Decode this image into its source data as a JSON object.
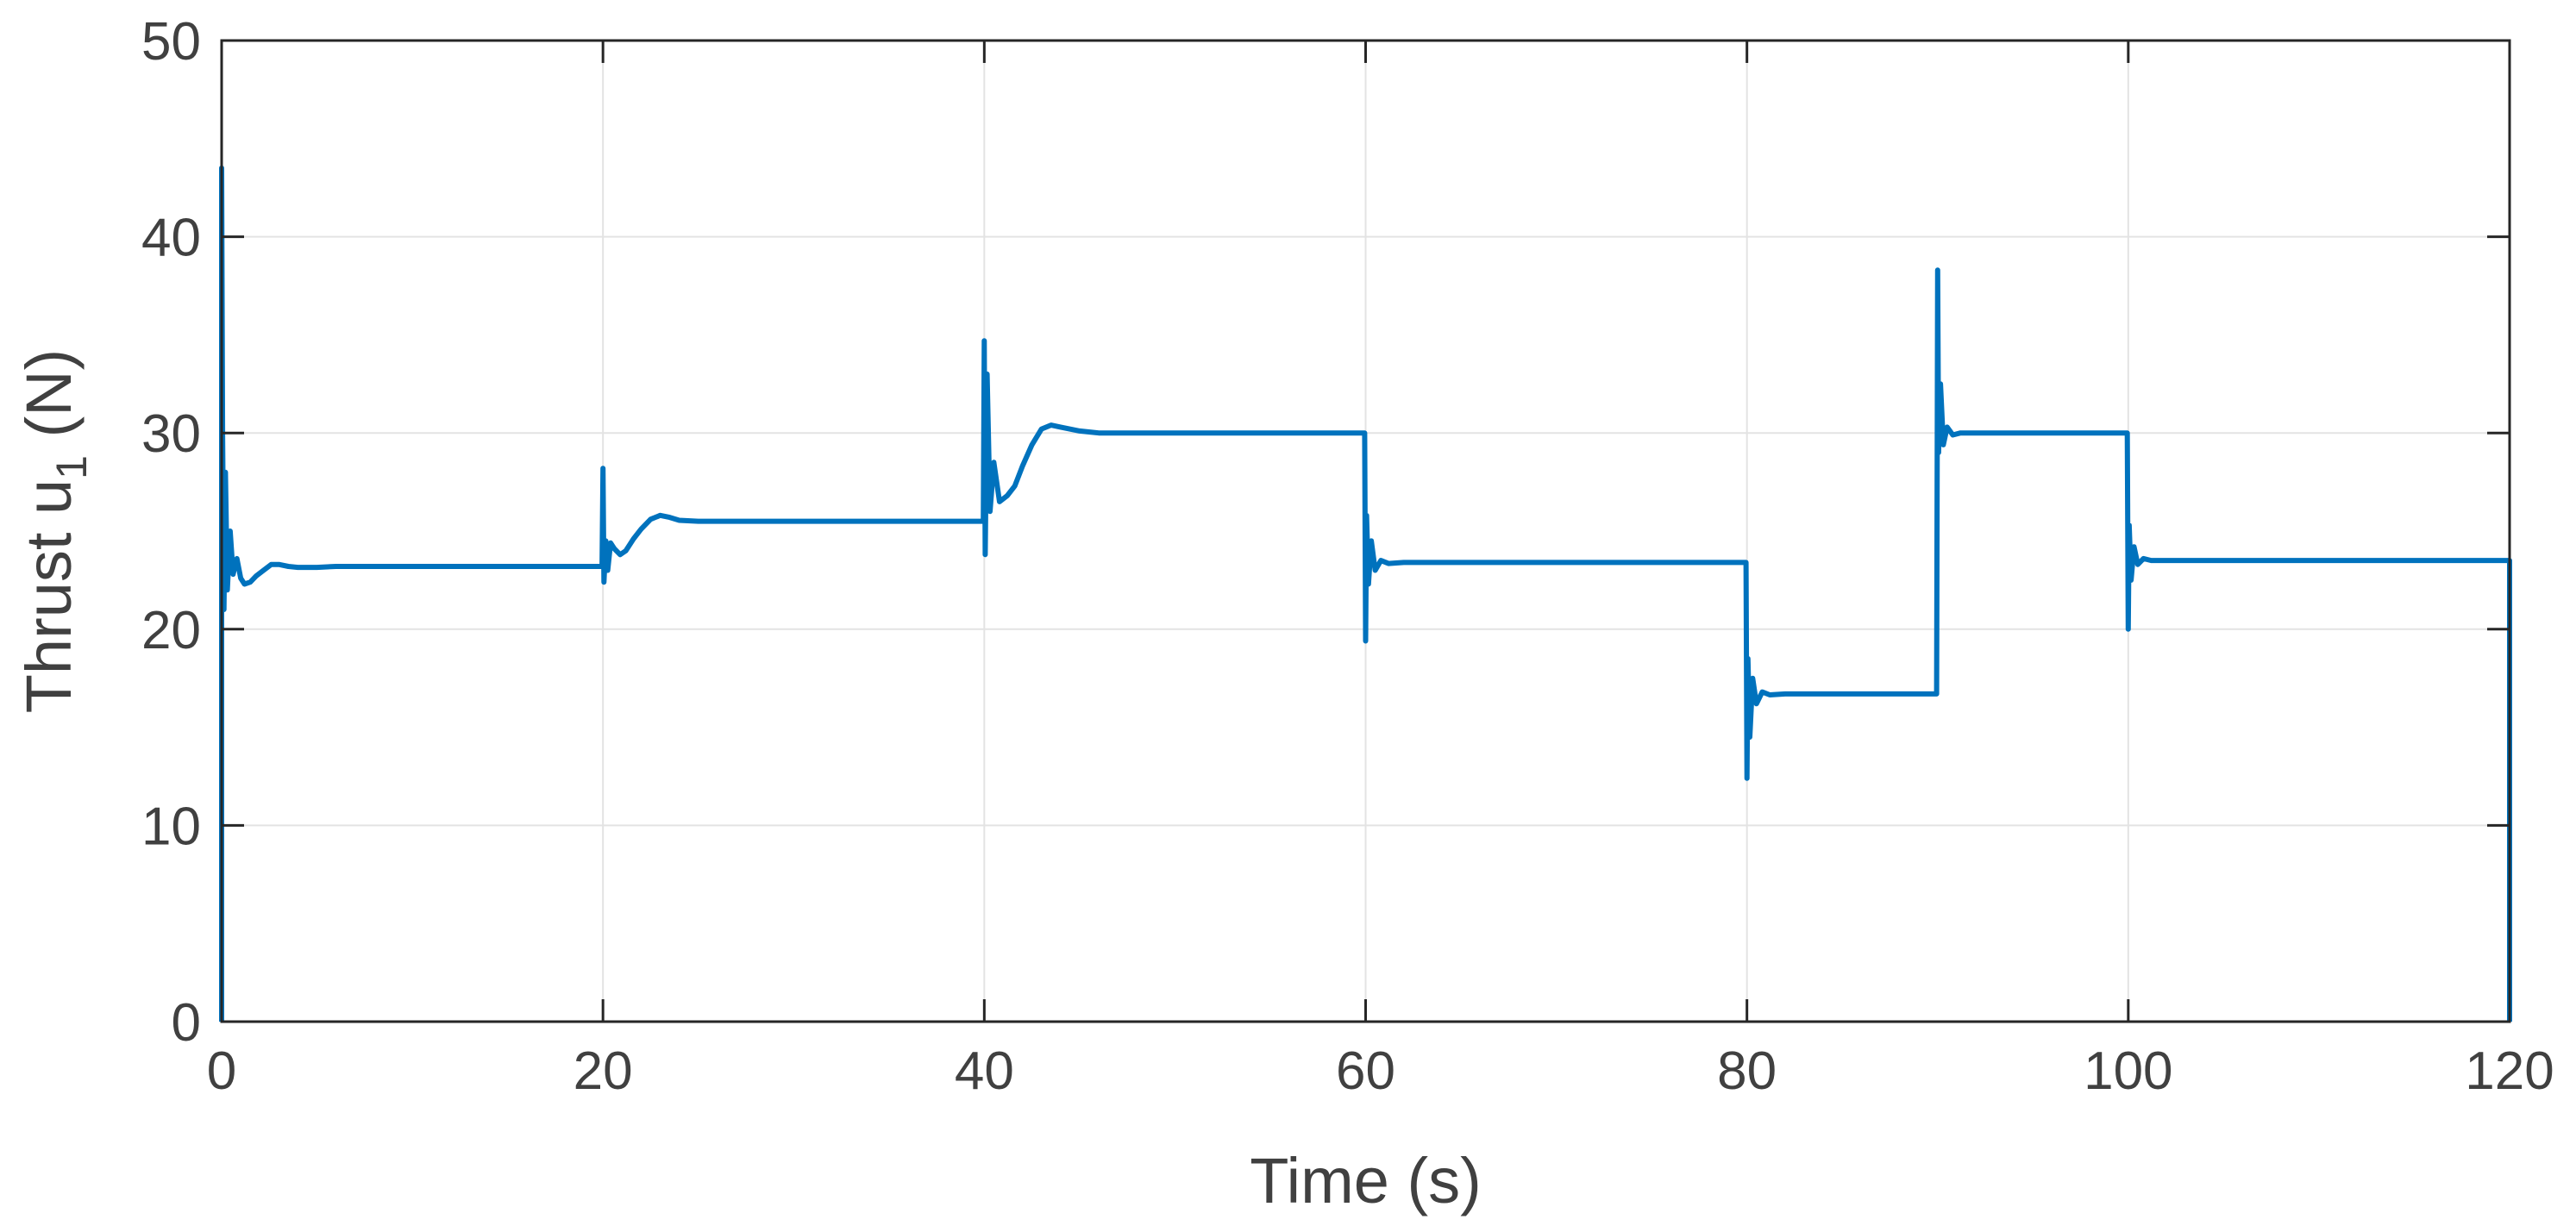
{
  "chart_data": {
    "type": "line",
    "title": "",
    "xlabel": "Time (s)",
    "ylabel": {
      "prefix": "Thrust u",
      "subscript": "1",
      "suffix": " (N)"
    },
    "xlim": [
      0,
      120
    ],
    "ylim": [
      0,
      50
    ],
    "xticks": [
      0,
      20,
      40,
      60,
      80,
      100,
      120
    ],
    "yticks": [
      0,
      10,
      20,
      30,
      40,
      50
    ],
    "xtick_labels": [
      "0",
      "20",
      "40",
      "60",
      "80",
      "100",
      "120"
    ],
    "ytick_labels": [
      "0",
      "10",
      "20",
      "30",
      "40",
      "50"
    ],
    "grid": true,
    "legend": "none",
    "colors": {
      "line": "#0072BD",
      "grid": "#e3e3e3",
      "axes": "#262626",
      "text": "#404040"
    },
    "series": [
      {
        "x": [
          0,
          0,
          0.05,
          0.12,
          0.2,
          0.3,
          0.45,
          0.6,
          0.8,
          1.0,
          1.2,
          1.5,
          1.8,
          2.2,
          2.6,
          3.0,
          3.5,
          4.0,
          5.0,
          6.0,
          10.0,
          19.95,
          20.0,
          20.05,
          20.15,
          20.25,
          20.4,
          20.6,
          20.9,
          21.2,
          21.6,
          22.0,
          22.5,
          23.0,
          23.5,
          24.0,
          25.0,
          26.0,
          30.0,
          39.95,
          40.0,
          40.05,
          40.15,
          40.3,
          40.5,
          40.8,
          41.2,
          41.6,
          42.0,
          42.5,
          43.0,
          43.5,
          44.0,
          45.0,
          46.0,
          47.0,
          48.0,
          50.0,
          59.95,
          60.0,
          60.05,
          60.15,
          60.3,
          60.5,
          60.8,
          61.2,
          62.0,
          70.0,
          79.95,
          80.0,
          80.05,
          80.15,
          80.3,
          80.5,
          80.8,
          81.2,
          82.0,
          85.0,
          89.95,
          90.0,
          90.05,
          90.15,
          90.3,
          90.5,
          90.8,
          91.2,
          92.0,
          95.0,
          99.95,
          100.0,
          100.05,
          100.15,
          100.3,
          100.5,
          100.8,
          101.2,
          102.0,
          110.0,
          119.9,
          120.0,
          120.0
        ],
        "y": [
          0,
          43.5,
          30.0,
          21.0,
          28.0,
          22.0,
          25.0,
          22.8,
          23.6,
          22.6,
          22.3,
          22.4,
          22.7,
          23.0,
          23.3,
          23.3,
          23.2,
          23.15,
          23.15,
          23.2,
          23.2,
          23.2,
          28.2,
          22.4,
          24.5,
          23.0,
          24.4,
          24.1,
          23.8,
          24.0,
          24.6,
          25.1,
          25.6,
          25.8,
          25.7,
          25.55,
          25.5,
          25.5,
          25.5,
          25.5,
          34.7,
          23.8,
          33.0,
          26.0,
          28.5,
          26.5,
          26.8,
          27.3,
          28.3,
          29.4,
          30.2,
          30.4,
          30.3,
          30.1,
          30.0,
          30.0,
          30.0,
          30.0,
          30.0,
          19.4,
          25.8,
          22.3,
          24.5,
          23.0,
          23.5,
          23.35,
          23.4,
          23.4,
          23.4,
          12.4,
          18.5,
          14.5,
          17.5,
          16.2,
          16.8,
          16.65,
          16.7,
          16.7,
          16.7,
          38.3,
          29.0,
          32.5,
          29.4,
          30.3,
          29.9,
          30.0,
          30.0,
          30.0,
          30.0,
          20.0,
          25.3,
          22.5,
          24.2,
          23.3,
          23.6,
          23.5,
          23.5,
          23.5,
          23.5,
          23.5,
          0
        ]
      }
    ]
  }
}
